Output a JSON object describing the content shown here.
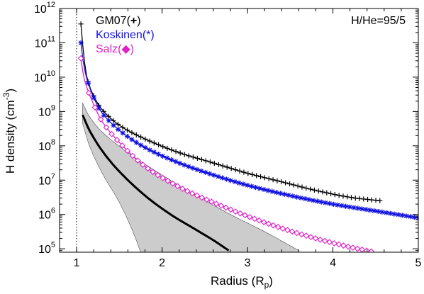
{
  "chart_data": {
    "type": "line",
    "xlabel": "Radius (R",
    "xlabel_sub": "p",
    "xlabel_close": ")",
    "ylabel": "H density (cm",
    "ylabel_sup": "-3",
    "ylabel_close": ")",
    "xlim": [
      0.8,
      5.0
    ],
    "ylim_log10": [
      4.9,
      12.0
    ],
    "y_scale": "log",
    "x_ticks": [
      {
        "value": 1,
        "label": "1"
      },
      {
        "value": 2,
        "label": "2"
      },
      {
        "value": 3,
        "label": "3"
      },
      {
        "value": 4,
        "label": "4"
      },
      {
        "value": 5,
        "label": "5"
      }
    ],
    "y_ticks": [
      {
        "exp": 5,
        "base": "10",
        "sup": "5"
      },
      {
        "exp": 6,
        "base": "10",
        "sup": "6"
      },
      {
        "exp": 7,
        "base": "10",
        "sup": "7"
      },
      {
        "exp": 8,
        "base": "10",
        "sup": "8"
      },
      {
        "exp": 9,
        "base": "10",
        "sup": "9"
      },
      {
        "exp": 10,
        "base": "10",
        "sup": "10"
      },
      {
        "exp": 11,
        "base": "10",
        "sup": "11"
      },
      {
        "exp": 12,
        "base": "10",
        "sup": "12"
      }
    ],
    "annotation": "H/He=95/5",
    "reference_line_x": 1.0,
    "legend_placement": "top-left",
    "colors": {
      "gm07": "#000000",
      "koskinen": "#1010e0",
      "salz": "#e020c8",
      "band_fill": "#cccccc",
      "band_edge": "#555555",
      "thick_line": "#000000"
    },
    "series": [
      {
        "name": "GM07(+)",
        "legend_base": "GM07(",
        "legend_glyph": "+",
        "legend_close": ")",
        "color": "#000000",
        "marker": "plus",
        "x_start": 1.05,
        "x_end": 4.55,
        "log10_y": [
          [
            1.05,
            11.55
          ],
          [
            1.08,
            10.7
          ],
          [
            1.12,
            10.0
          ],
          [
            1.2,
            9.45
          ],
          [
            1.3,
            9.05
          ],
          [
            1.5,
            8.6
          ],
          [
            1.8,
            8.2
          ],
          [
            2.2,
            7.8
          ],
          [
            2.6,
            7.5
          ],
          [
            3.0,
            7.2
          ],
          [
            3.4,
            6.95
          ],
          [
            3.8,
            6.7
          ],
          [
            4.2,
            6.5
          ],
          [
            4.55,
            6.4
          ]
        ]
      },
      {
        "name": "Koskinen(*)",
        "legend_base": "Koskinen(",
        "legend_glyph": "*",
        "legend_close": ")",
        "color": "#1010e0",
        "marker": "asterisk",
        "x_start": 1.05,
        "x_end": 5.0,
        "log10_y": [
          [
            1.05,
            11.0
          ],
          [
            1.08,
            10.4
          ],
          [
            1.12,
            9.95
          ],
          [
            1.2,
            9.4
          ],
          [
            1.3,
            8.95
          ],
          [
            1.5,
            8.45
          ],
          [
            1.8,
            7.95
          ],
          [
            2.2,
            7.5
          ],
          [
            2.6,
            7.15
          ],
          [
            3.0,
            6.85
          ],
          [
            3.5,
            6.55
          ],
          [
            4.0,
            6.3
          ],
          [
            4.5,
            6.1
          ],
          [
            5.0,
            5.9
          ]
        ]
      },
      {
        "name": "Salz(◆)",
        "legend_base": "Salz(",
        "legend_glyph": "◆",
        "legend_close": ")",
        "color": "#e020c8",
        "marker": "diamond",
        "x_start": 1.05,
        "x_end": 4.45,
        "log10_y": [
          [
            1.05,
            10.55
          ],
          [
            1.08,
            10.05
          ],
          [
            1.12,
            9.7
          ],
          [
            1.2,
            9.2
          ],
          [
            1.3,
            8.7
          ],
          [
            1.5,
            8.1
          ],
          [
            1.8,
            7.4
          ],
          [
            2.2,
            6.8
          ],
          [
            2.6,
            6.35
          ],
          [
            3.0,
            5.95
          ],
          [
            3.4,
            5.6
          ],
          [
            3.8,
            5.3
          ],
          [
            4.2,
            5.05
          ],
          [
            4.45,
            4.92
          ]
        ]
      }
    ],
    "thick_curve": [
      [
        1.07,
        8.9
      ],
      [
        1.15,
        8.45
      ],
      [
        1.3,
        7.85
      ],
      [
        1.5,
        7.25
      ],
      [
        1.8,
        6.55
      ],
      [
        2.1,
        6.0
      ],
      [
        2.4,
        5.55
      ],
      [
        2.6,
        5.25
      ],
      [
        2.78,
        4.95
      ]
    ],
    "band_upper": [
      [
        1.07,
        9.25
      ],
      [
        1.15,
        8.85
      ],
      [
        1.3,
        8.4
      ],
      [
        1.6,
        7.8
      ],
      [
        2.0,
        7.15
      ],
      [
        2.4,
        6.55
      ],
      [
        2.8,
        6.0
      ],
      [
        3.2,
        5.5
      ],
      [
        3.6,
        4.95
      ]
    ],
    "band_lower": [
      [
        1.07,
        8.65
      ],
      [
        1.15,
        8.0
      ],
      [
        1.3,
        7.2
      ],
      [
        1.5,
        6.35
      ],
      [
        1.65,
        5.55
      ],
      [
        1.75,
        4.9
      ]
    ]
  }
}
